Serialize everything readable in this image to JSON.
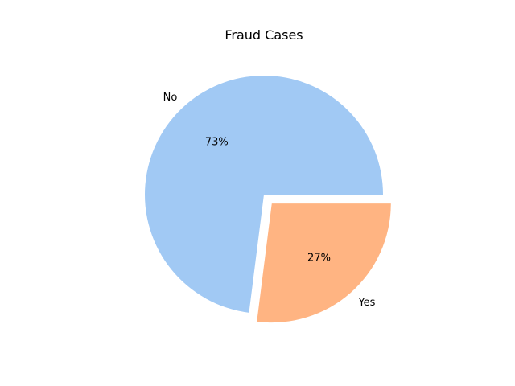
{
  "chart_data": {
    "type": "pie",
    "title": "Fraud Cases",
    "slices": [
      {
        "label": "No",
        "value": 73,
        "pct_label": "73%",
        "color": "#a1c9f4",
        "explode": 0
      },
      {
        "label": "Yes",
        "value": 27,
        "pct_label": "27%",
        "color": "#ffb482",
        "explode": 0.1
      }
    ],
    "start_angle": 0,
    "direction": "counterclockwise"
  }
}
